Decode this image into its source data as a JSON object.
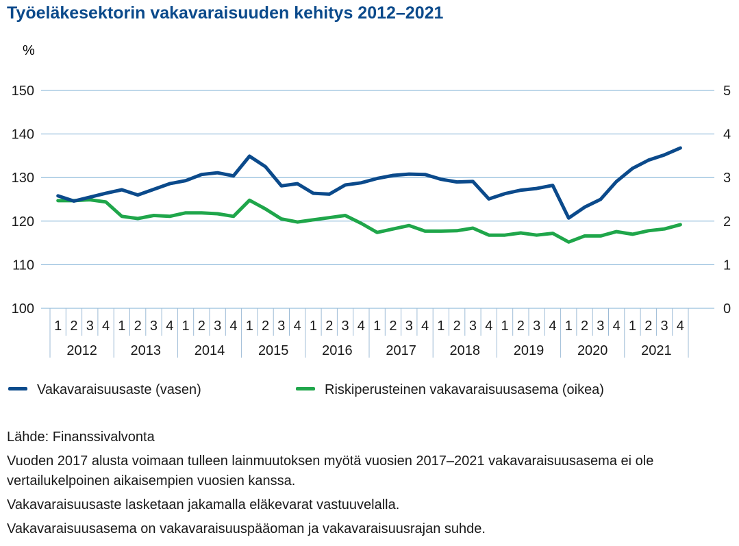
{
  "title": "Työeläkesektorin vakavaraisuuden kehitys 2012–2021",
  "legend": {
    "left": "Vakavaraisuusaste (vasen)",
    "right": "Riskiperusteinen vakavaraisuusasema (oikea)"
  },
  "notes": {
    "source": "Lähde: Finanssivalvonta",
    "note1": "Vuoden 2017 alusta voimaan tulleen lainmuutoksen myötä vuosien 2017–2021 vakavaraisuusasema ei ole vertailukelpoinen aikaisempien vuosien kanssa.",
    "note2": "Vakavaraisuusaste lasketaan jakamalla eläkevarat vastuuvelalla.",
    "note3": "Vakavaraisuusasema on vakavaraisuuspääoman ja vakavaraisuusrajan suhde."
  },
  "colors": {
    "blue": "#0b4a8b",
    "green": "#1fa64a",
    "grid": "#7fb0d6",
    "axis": "#9dbbd6"
  },
  "chart_data": {
    "type": "line",
    "title": "Työeläkesektorin vakavaraisuuden kehitys 2012–2021",
    "ylabel_left": "%",
    "y_left": {
      "min": 100,
      "max": 150,
      "ticks": [
        150,
        140,
        130,
        120,
        110,
        100
      ]
    },
    "y_right": {
      "min": 0,
      "max": 5,
      "ticks": [
        5,
        4,
        3,
        2,
        1,
        0
      ]
    },
    "grid": true,
    "legend_position": "bottom",
    "quarters": [
      "1",
      "2",
      "3",
      "4",
      "1",
      "2",
      "3",
      "4",
      "1",
      "2",
      "3",
      "4",
      "1",
      "2",
      "3",
      "4",
      "1",
      "2",
      "3",
      "4",
      "1",
      "2",
      "3",
      "4",
      "1",
      "2",
      "3",
      "4",
      "1",
      "2",
      "3",
      "4",
      "1",
      "2",
      "3",
      "4",
      "1",
      "2",
      "3",
      "4"
    ],
    "years": [
      "2012",
      "2013",
      "2014",
      "2015",
      "2016",
      "2017",
      "2018",
      "2019",
      "2020",
      "2021"
    ],
    "series": [
      {
        "name": "Vakavaraisuusaste (vasen)",
        "axis": "left",
        "color": "#0b4a8b",
        "values": [
          125.8,
          124.6,
          125.5,
          126.4,
          127.2,
          126.0,
          127.3,
          128.6,
          129.3,
          130.7,
          131.1,
          130.4,
          134.9,
          132.5,
          128.1,
          128.6,
          126.4,
          126.2,
          128.3,
          128.8,
          129.8,
          130.5,
          130.8,
          130.7,
          129.6,
          129.0,
          129.1,
          125.1,
          126.3,
          127.1,
          127.5,
          128.2,
          120.7,
          123.2,
          125.0,
          129.1,
          132.1,
          134.0,
          135.2,
          136.8
        ]
      },
      {
        "name": "Riskiperusteinen vakavaraisuusasema (oikea)",
        "axis": "right",
        "color": "#1fa64a",
        "values": [
          2.47,
          2.47,
          2.49,
          2.44,
          2.11,
          2.06,
          2.13,
          2.11,
          2.19,
          2.19,
          2.17,
          2.11,
          2.48,
          2.28,
          2.05,
          1.98,
          2.03,
          2.08,
          2.13,
          1.95,
          1.74,
          1.82,
          1.9,
          1.77,
          1.77,
          1.78,
          1.84,
          1.68,
          1.68,
          1.73,
          1.68,
          1.72,
          1.52,
          1.66,
          1.66,
          1.76,
          1.7,
          1.78,
          1.82,
          1.92
        ]
      }
    ]
  }
}
